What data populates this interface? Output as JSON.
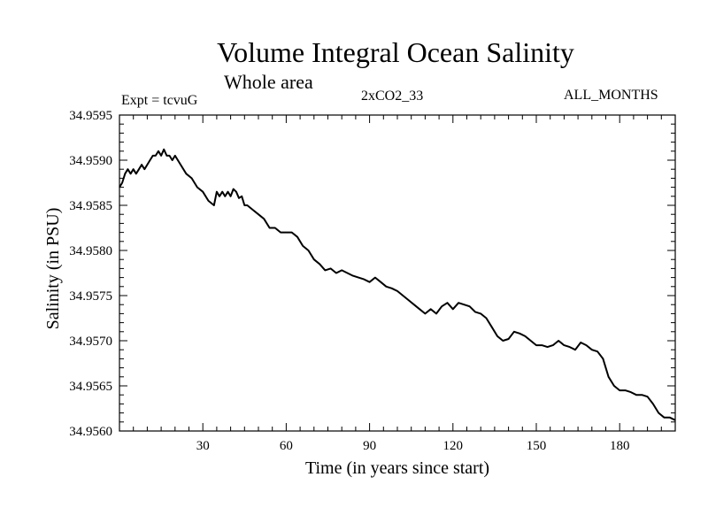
{
  "header": {
    "title": "Volume Integral Ocean Salinity",
    "subtitle": "Whole area",
    "experiment": "Expt = tcvuG",
    "run": "2xCO2_33",
    "months": "ALL_MONTHS"
  },
  "chart_data": {
    "type": "line",
    "title": "Volume Integral Ocean Salinity",
    "subtitle": "Whole area",
    "xlabel": "Time (in years since start)",
    "ylabel": "Salinity (in PSU)",
    "xlim": [
      0,
      200
    ],
    "ylim": [
      34.956,
      34.9595
    ],
    "xticks": [
      30,
      60,
      90,
      120,
      150,
      180
    ],
    "xtick_labels": [
      "30",
      "60",
      "90",
      "120",
      "150",
      "180"
    ],
    "yticks": [
      34.956,
      34.9565,
      34.957,
      34.9575,
      34.958,
      34.9585,
      34.959,
      34.9595
    ],
    "ytick_labels": [
      "34.9560",
      "34.9565",
      "34.9570",
      "34.9575",
      "34.9580",
      "34.9585",
      "34.9590",
      "34.9595"
    ],
    "grid": false,
    "series": [
      {
        "x": [
          0,
          1,
          2,
          3,
          4,
          5,
          6,
          7,
          8,
          9,
          10,
          11,
          12,
          13,
          14,
          15,
          16,
          17,
          18,
          19,
          20,
          22,
          24,
          26,
          28,
          30,
          32,
          34,
          35,
          36,
          37,
          38,
          39,
          40,
          41,
          42,
          43,
          44,
          45,
          46,
          48,
          50,
          52,
          54,
          56,
          58,
          60,
          62,
          64,
          66,
          68,
          70,
          72,
          74,
          76,
          78,
          80,
          82,
          84,
          86,
          88,
          90,
          92,
          94,
          96,
          98,
          100,
          102,
          104,
          106,
          108,
          110,
          112,
          114,
          116,
          118,
          120,
          122,
          124,
          126,
          128,
          130,
          132,
          134,
          136,
          138,
          140,
          142,
          144,
          146,
          148,
          150,
          152,
          154,
          156,
          158,
          160,
          162,
          164,
          166,
          168,
          170,
          172,
          174,
          176,
          178,
          180,
          182,
          184,
          186,
          188,
          190,
          192,
          194,
          196,
          198,
          200
        ],
        "values": [
          34.9587,
          34.95875,
          34.95885,
          34.9589,
          34.95885,
          34.9589,
          34.95885,
          34.9589,
          34.95895,
          34.9589,
          34.95895,
          34.959,
          34.95905,
          34.95905,
          34.9591,
          34.95905,
          34.95912,
          34.95905,
          34.95905,
          34.959,
          34.95905,
          34.95895,
          34.95885,
          34.9588,
          34.9587,
          34.95865,
          34.95855,
          34.9585,
          34.95865,
          34.9586,
          34.95865,
          34.9586,
          34.95865,
          34.9586,
          34.95868,
          34.95865,
          34.95858,
          34.9586,
          34.9585,
          34.9585,
          34.95845,
          34.9584,
          34.95835,
          34.95825,
          34.95825,
          34.9582,
          34.9582,
          34.9582,
          34.95815,
          34.95805,
          34.958,
          34.9579,
          34.95785,
          34.95778,
          34.9578,
          34.95775,
          34.95778,
          34.95775,
          34.95772,
          34.9577,
          34.95768,
          34.95765,
          34.9577,
          34.95765,
          34.9576,
          34.95758,
          34.95755,
          34.9575,
          34.95745,
          34.9574,
          34.95735,
          34.9573,
          34.95735,
          34.9573,
          34.95738,
          34.95742,
          34.95735,
          34.95742,
          34.9574,
          34.95738,
          34.95732,
          34.9573,
          34.95725,
          34.95715,
          34.95705,
          34.957,
          34.95702,
          34.9571,
          34.95708,
          34.95705,
          34.957,
          34.95695,
          34.95695,
          34.95693,
          34.95695,
          34.957,
          34.95695,
          34.95693,
          34.9569,
          34.95698,
          34.95695,
          34.9569,
          34.95688,
          34.9568,
          34.9566,
          34.9565,
          34.95645,
          34.95645,
          34.95643,
          34.9564,
          34.9564,
          34.95638,
          34.9563,
          34.9562,
          34.95615,
          34.95615,
          34.95612
        ]
      }
    ]
  }
}
